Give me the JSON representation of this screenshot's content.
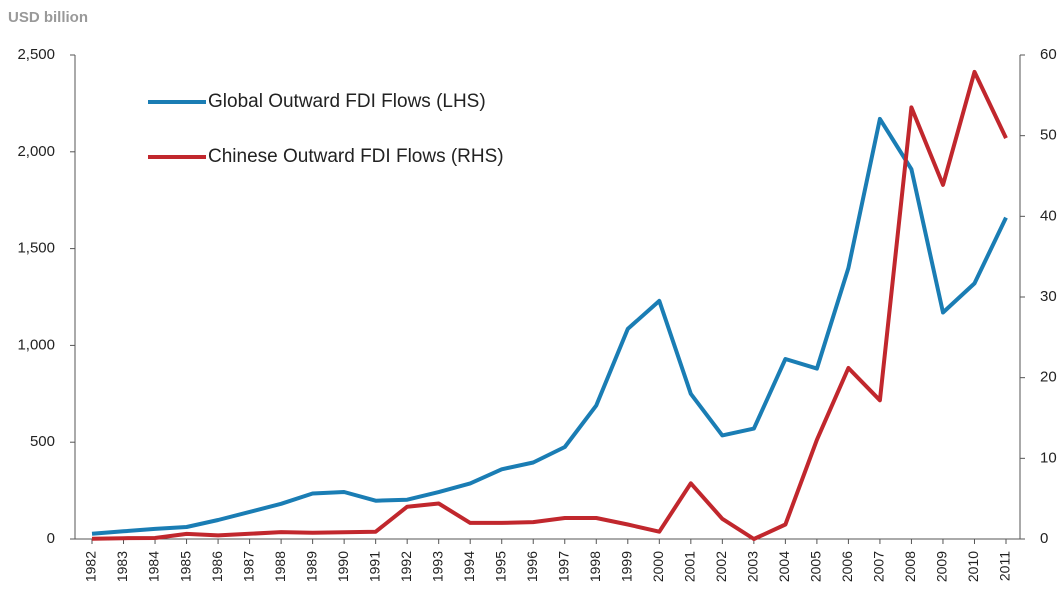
{
  "chart_data": {
    "type": "line",
    "ylabel": "USD billion",
    "categories": [
      "1982",
      "1983",
      "1984",
      "1985",
      "1986",
      "1987",
      "1988",
      "1989",
      "1990",
      "1991",
      "1992",
      "1993",
      "1994",
      "1995",
      "1996",
      "1997",
      "1998",
      "1999",
      "2000",
      "2001",
      "2002",
      "2003",
      "2004",
      "2005",
      "2006",
      "2007",
      "2008",
      "2009",
      "2010",
      "2011"
    ],
    "series": [
      {
        "name": "Global Outward FDI Flows (LHS)",
        "color": "#1a7db4",
        "axis": "y",
        "values": [
          27,
          40,
          52,
          62,
          98,
          140,
          182,
          235,
          243,
          198,
          203,
          242,
          287,
          360,
          395,
          475,
          690,
          1085,
          1230,
          750,
          535,
          570,
          930,
          880,
          1400,
          2170,
          1910,
          1170,
          1320,
          1660
        ]
      },
      {
        "name": "Chinese Outward FDI Flows (RHS)",
        "color": "#c1272d",
        "axis": "y2",
        "values": [
          0.04,
          0.1,
          0.13,
          0.63,
          0.45,
          0.65,
          0.85,
          0.78,
          0.83,
          0.91,
          4.0,
          4.4,
          2.0,
          2.0,
          2.1,
          2.6,
          2.6,
          1.8,
          0.9,
          6.9,
          2.5,
          0,
          1.8,
          12.3,
          21.2,
          17.2,
          53.5,
          43.9,
          57.9,
          49.7
        ]
      }
    ],
    "ylim": [
      0,
      2500
    ],
    "yticks": [
      0,
      500,
      {
        "value": 1000,
        "label": "1,000"
      },
      {
        "value": 1500,
        "label": "1,500"
      },
      {
        "value": 2000,
        "label": "2,000"
      },
      {
        "value": 2500,
        "label": "2,500"
      }
    ],
    "y2lim": [
      0,
      60
    ],
    "y2ticks": [
      0,
      10,
      20,
      30,
      40,
      50,
      60
    ],
    "grid": false,
    "legend": "upper left"
  }
}
